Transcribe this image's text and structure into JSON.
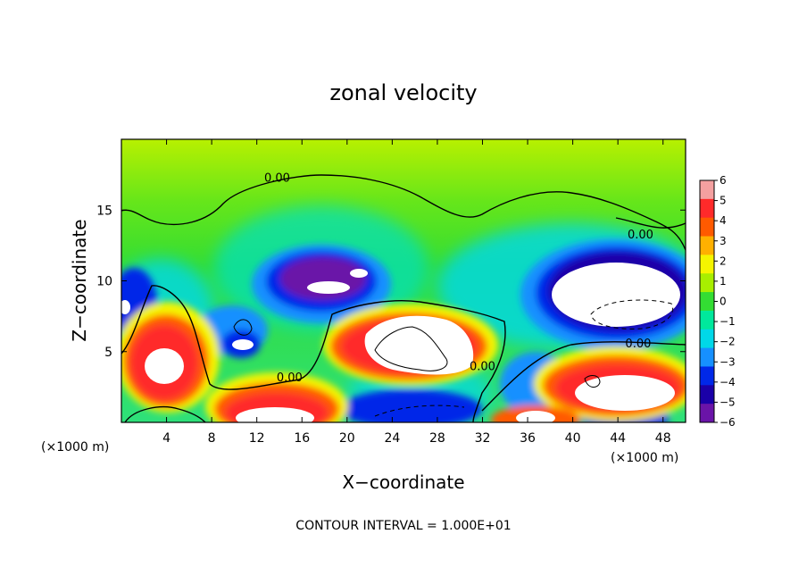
{
  "chart_data": {
    "type": "heatmap",
    "title": "zonal velocity",
    "xlabel": "X−coordinate",
    "ylabel": "Z−coordinate",
    "x_unit_left": "(×1000 m)",
    "x_unit_right": "(×1000 m)",
    "xlim": [
      0,
      50
    ],
    "ylim": [
      0,
      20
    ],
    "x_ticks": [
      4,
      8,
      12,
      16,
      20,
      24,
      28,
      32,
      36,
      40,
      44,
      48
    ],
    "x_tick_labels": [
      "4",
      "8",
      "12",
      "16",
      "20",
      "24",
      "28",
      "32",
      "36",
      "40",
      "44",
      "48"
    ],
    "y_ticks": [
      5,
      10,
      15
    ],
    "y_tick_labels": [
      "5",
      "10",
      "15"
    ],
    "colorbar": {
      "levels": [
        6,
        5,
        4,
        3,
        2,
        1,
        0,
        -1,
        -2,
        -3,
        -4,
        -5,
        -6
      ],
      "labels": [
        "6",
        "5",
        "4",
        "3",
        "2",
        "1",
        "0",
        "−1",
        "−2",
        "−3",
        "−4",
        "−5",
        "−6"
      ],
      "colors": [
        "#f4a0a0",
        "#ff2a2a",
        "#ff5a00",
        "#ffb000",
        "#f5f500",
        "#a8ee00",
        "#33dd33",
        "#00e89c",
        "#00d8e8",
        "#1690ff",
        "#0028e8",
        "#1a00a8",
        "#6a14a8"
      ]
    },
    "contour_labels": [
      {
        "text": "0.00",
        "x": 13.8,
        "z": 17.0
      },
      {
        "text": "0.00",
        "x": 46.0,
        "z": 13.0
      },
      {
        "text": "0.00",
        "x": 45.8,
        "z": 5.3
      },
      {
        "text": "0.00",
        "x": 14.9,
        "z": 2.9
      },
      {
        "text": "0.00",
        "x": 32.0,
        "z": 3.7
      }
    ],
    "grid": false,
    "legend_position": "right"
  },
  "footer": {
    "contour_note": "CONTOUR INTERVAL = 1.000E+01"
  }
}
